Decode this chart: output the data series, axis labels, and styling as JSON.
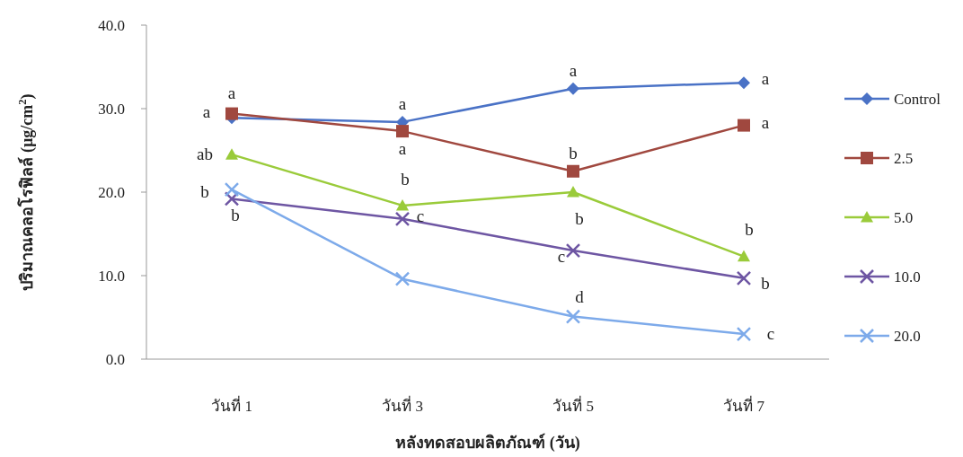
{
  "chart_data": {
    "type": "line",
    "xlabel": "หลังทดสอบผลิตภัณฑ์ (วัน)",
    "ylabel": "ปริมาณคลอโรฟิลล์ (µg/cm$^{2}$)",
    "categories": [
      "วันที่ 1",
      "วันที่ 3",
      "วันที่ 5",
      "วันที่ 7"
    ],
    "ylim": [
      0,
      40
    ],
    "yticks": [
      {
        "value": 0,
        "label": "0.0"
      },
      {
        "value": 10,
        "label": "10.0"
      },
      {
        "value": 20,
        "label": "20.0"
      },
      {
        "value": 30,
        "label": "30.0"
      },
      {
        "value": 40,
        "label": "40.0"
      }
    ],
    "legend": "right",
    "series": [
      {
        "name": "Control",
        "color": "#4a72c6",
        "marker": "diamond",
        "values": [
          28.9,
          28.4,
          32.4,
          33.1
        ]
      },
      {
        "name": "2.5",
        "color": "#a0483f",
        "marker": "square",
        "values": [
          29.4,
          27.3,
          22.5,
          28.0
        ]
      },
      {
        "name": "5.0",
        "color": "#9acb3a",
        "marker": "triangle",
        "values": [
          24.5,
          18.4,
          20.0,
          12.3
        ]
      },
      {
        "name": "10.0",
        "color": "#6e56a3",
        "marker": "cross",
        "values": [
          19.2,
          16.8,
          13.0,
          9.7
        ]
      },
      {
        "name": "20.0",
        "color": "#7daaea",
        "marker": "cross",
        "values": [
          20.3,
          9.6,
          5.1,
          3.0
        ]
      }
    ],
    "annotations": [
      {
        "text": "a",
        "x": "วันที่ 1",
        "y": 28.9
      },
      {
        "text": "a",
        "x": "วันที่ 1",
        "y": 29.4
      },
      {
        "text": "ab",
        "x": "วันที่ 1",
        "y": 24.5
      },
      {
        "text": "b",
        "x": "วันที่ 1",
        "y": 20.3
      },
      {
        "text": "b",
        "x": "วันที่ 1",
        "y": 19.2
      },
      {
        "text": "a",
        "x": "วันที่ 3",
        "y": 28.4
      },
      {
        "text": "a",
        "x": "วันที่ 3",
        "y": 27.3
      },
      {
        "text": "b",
        "x": "วันที่ 3",
        "y": 18.4
      },
      {
        "text": "c",
        "x": "วันที่ 3",
        "y": 16.8
      },
      {
        "text": "a",
        "x": "วันที่ 5",
        "y": 32.4
      },
      {
        "text": "b",
        "x": "วันที่ 5",
        "y": 22.5
      },
      {
        "text": "b",
        "x": "วันที่ 5",
        "y": 20.0
      },
      {
        "text": "c",
        "x": "วันที่ 5",
        "y": 13.0
      },
      {
        "text": "d",
        "x": "วันที่ 5",
        "y": 5.1
      },
      {
        "text": "a",
        "x": "วันที่ 7",
        "y": 33.1
      },
      {
        "text": "a",
        "x": "วันที่ 7",
        "y": 28.0
      },
      {
        "text": "b",
        "x": "วันที่ 7",
        "y": 12.3
      },
      {
        "text": "b",
        "x": "วันที่ 7",
        "y": 9.7
      },
      {
        "text": "c",
        "x": "วันที่ 7",
        "y": 3.0
      }
    ]
  }
}
